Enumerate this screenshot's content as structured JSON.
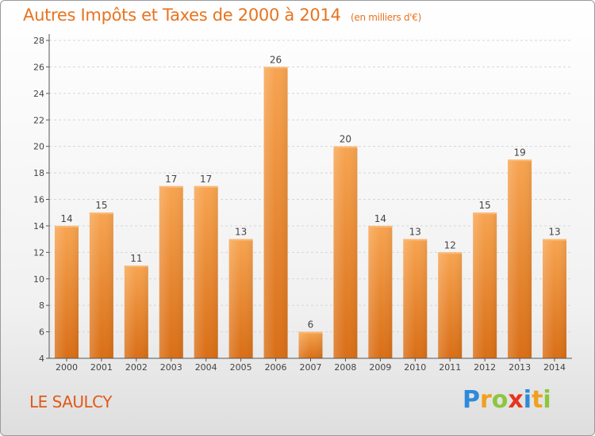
{
  "chart_data": {
    "type": "bar",
    "title": "Autres Impôts et Taxes de 2000 à 2014",
    "subtitle": "(en milliers d'€)",
    "categories": [
      "2000",
      "2001",
      "2002",
      "2003",
      "2004",
      "2005",
      "2006",
      "2007",
      "2008",
      "2009",
      "2010",
      "2011",
      "2012",
      "2013",
      "2014"
    ],
    "values": [
      14,
      15,
      11,
      17,
      17,
      13,
      26,
      6,
      20,
      14,
      13,
      12,
      15,
      19,
      13
    ],
    "ylim": [
      4,
      28
    ],
    "yticks": [
      4,
      6,
      8,
      10,
      12,
      14,
      16,
      18,
      20,
      22,
      24,
      26,
      28
    ],
    "grid": true,
    "bar_color": "#f08a2e"
  },
  "town": "LE SAULCY",
  "logo": {
    "text": "Proxiti",
    "letters": [
      {
        "ch": "P",
        "color": "#2e8ad8"
      },
      {
        "ch": "r",
        "color": "#f0a020"
      },
      {
        "ch": "o",
        "color": "#8cc63f"
      },
      {
        "ch": "x",
        "color": "#e8341c"
      },
      {
        "ch": "i",
        "color": "#2e8ad8"
      },
      {
        "ch": "t",
        "color": "#f0a020"
      },
      {
        "ch": "i",
        "color": "#8cc63f"
      }
    ]
  }
}
